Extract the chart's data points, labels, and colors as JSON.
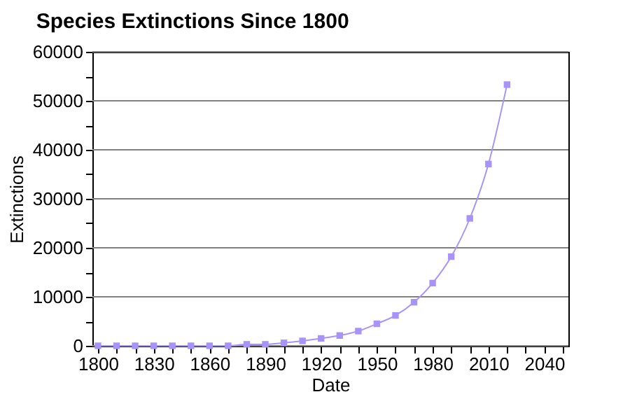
{
  "chart_data": {
    "type": "line",
    "title": "Species Extinctions Since 1800",
    "xlabel": "Date",
    "ylabel": "Extinctions",
    "x": [
      1800,
      1810,
      1820,
      1830,
      1840,
      1850,
      1860,
      1870,
      1880,
      1890,
      1900,
      1910,
      1920,
      1930,
      1940,
      1950,
      1960,
      1970,
      1980,
      1990,
      2000,
      2010,
      2020
    ],
    "series": [
      {
        "color": "#a894f8",
        "values": [
          0,
          0,
          0,
          0,
          0,
          0,
          0,
          0,
          300,
          300,
          600,
          1000,
          1500,
          2100,
          3000,
          4500,
          6200,
          8900,
          12800,
          18200,
          26000,
          37100,
          53300
        ]
      }
    ],
    "xlim": [
      1797,
      2053
    ],
    "xticks": [
      1800,
      {
        "value": 1810,
        "label": null
      },
      {
        "value": 1820,
        "label": null
      },
      1830,
      {
        "value": 1840,
        "label": null
      },
      {
        "value": 1850,
        "label": null
      },
      1860,
      {
        "value": 1870,
        "label": null
      },
      {
        "value": 1880,
        "label": null
      },
      1890,
      {
        "value": 1900,
        "label": null
      },
      {
        "value": 1910,
        "label": null
      },
      1920,
      {
        "value": 1930,
        "label": null
      },
      {
        "value": 1940,
        "label": null
      },
      1950,
      {
        "value": 1960,
        "label": null
      },
      {
        "value": 1970,
        "label": null
      },
      1980,
      {
        "value": 1990,
        "label": null
      },
      {
        "value": 2000,
        "label": null
      },
      2010,
      {
        "value": 2020,
        "label": null
      },
      {
        "value": 2030,
        "label": null
      },
      2040,
      {
        "value": 2050,
        "label": null
      }
    ],
    "ylim": [
      0,
      60000
    ],
    "yticks": [
      0,
      {
        "value": 5000,
        "label": null
      },
      10000,
      {
        "value": 15000,
        "label": null
      },
      20000,
      {
        "value": 25000,
        "label": null
      },
      30000,
      {
        "value": 35000,
        "label": null
      },
      40000,
      {
        "value": 45000,
        "label": null
      },
      50000,
      {
        "value": 55000,
        "label": null
      },
      60000
    ],
    "grid": "y",
    "marker": "square",
    "line_style": "solid"
  }
}
